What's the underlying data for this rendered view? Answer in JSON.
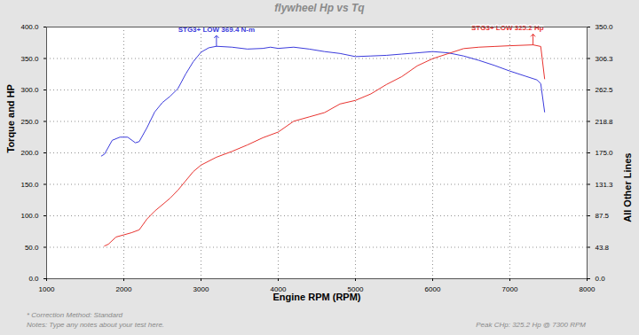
{
  "chart_data": {
    "type": "line",
    "title": "flywheel Hp vs Tq",
    "x_label": "Engine RPM (RPM)",
    "y_label": "Torque and HP",
    "y2_label": "All Other Lines",
    "xlim": [
      1000,
      8000
    ],
    "xticks": [
      1000,
      2000,
      3000,
      4000,
      5000,
      6000,
      7000,
      8000
    ],
    "ylim": [
      0,
      400
    ],
    "yticks": [
      {
        "value": 0,
        "label": "0.0"
      },
      {
        "value": 50,
        "label": "50.0"
      },
      {
        "value": 100,
        "label": "100.0"
      },
      {
        "value": 150,
        "label": "150.0"
      },
      {
        "value": 200,
        "label": "200.0"
      },
      {
        "value": 250,
        "label": "250.0"
      },
      {
        "value": 300,
        "label": "300.0"
      },
      {
        "value": 350,
        "label": "350.0"
      },
      {
        "value": 400,
        "label": "400.0"
      }
    ],
    "y2lim": [
      0,
      350
    ],
    "y2ticks": [
      {
        "value": 0,
        "label": "0.0"
      },
      {
        "value": 43.75,
        "label": "43.8"
      },
      {
        "value": 87.5,
        "label": "87.5"
      },
      {
        "value": 131.25,
        "label": "131.3"
      },
      {
        "value": 175,
        "label": "175.0"
      },
      {
        "value": 218.75,
        "label": "218.8"
      },
      {
        "value": 262.5,
        "label": "262.5"
      },
      {
        "value": 306.25,
        "label": "306.3"
      },
      {
        "value": 350,
        "label": "350.0"
      }
    ],
    "grid": true,
    "series": [
      {
        "color": "#3b3bdc",
        "axis": "y",
        "x": [
          1710,
          1750,
          1850,
          1950,
          2050,
          2150,
          2200,
          2300,
          2400,
          2500,
          2600,
          2700,
          2800,
          2900,
          3000,
          3100,
          3200,
          3400,
          3600,
          3800,
          3900,
          4000,
          4200,
          4400,
          4600,
          4800,
          5000,
          5200,
          5400,
          5600,
          5800,
          6000,
          6200,
          6400,
          6600,
          6800,
          7000,
          7200,
          7350,
          7400,
          7450
        ],
        "values": [
          195,
          198,
          220,
          225,
          225,
          216,
          218,
          240,
          265,
          280,
          290,
          302,
          325,
          345,
          360,
          367,
          369.4,
          368,
          365,
          366,
          368,
          366,
          368,
          365,
          361,
          358,
          353,
          354,
          355,
          357,
          359,
          361,
          359,
          354,
          347,
          339,
          330,
          322,
          316,
          310,
          265
        ]
      },
      {
        "color": "#e8332f",
        "axis": "y2",
        "x": [
          1750,
          1800,
          1900,
          2000,
          2100,
          2200,
          2300,
          2400,
          2500,
          2600,
          2700,
          2800,
          2900,
          3000,
          3200,
          3400,
          3600,
          3800,
          4000,
          4200,
          4400,
          4600,
          4800,
          5000,
          5200,
          5400,
          5600,
          5800,
          6000,
          6200,
          6400,
          6600,
          6800,
          7000,
          7300,
          7400,
          7450
        ],
        "values": [
          45.5,
          48,
          58,
          61,
          64,
          68,
          83,
          94,
          103,
          112,
          123,
          136,
          149,
          158,
          169,
          177,
          186,
          196,
          204,
          219,
          225,
          231,
          243,
          248,
          257,
          270,
          281,
          296,
          306,
          313,
          320,
          322,
          323,
          324,
          325.2,
          323,
          278
        ]
      }
    ],
    "annotations": [
      {
        "text": "STG3+ LOW 369.4 N-m",
        "x": 3200,
        "y": 369.4,
        "axis": "y",
        "color": "#3b3bdc"
      },
      {
        "text": "STG3+ LOW 325.2 Hp",
        "x": 7300,
        "y": 325.2,
        "axis": "y2",
        "color": "#e8332f"
      }
    ],
    "notes": [
      "* Correction Method: Standard",
      "Notes: Type any notes about your test here."
    ],
    "peak_note": "Peak CHp: 325.2 Hp @ 7300 RPM"
  }
}
